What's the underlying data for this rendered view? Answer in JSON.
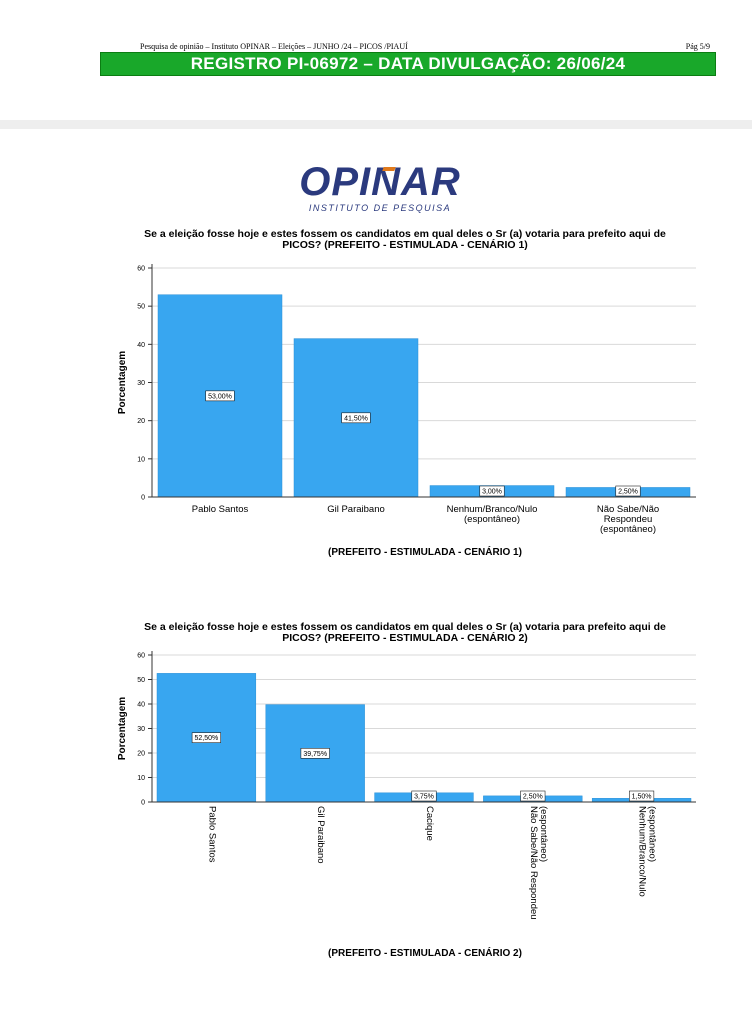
{
  "header": {
    "line": "Pesquisa de opinião – Instituto OPINAR – Eleições – JUNHO /24 – PICOS /PIAUÍ",
    "page": "Pág 5/9",
    "registro": "REGISTRO PI-06972 – DATA DIVULGAÇÃO: 26/06/24",
    "bar_color": "#19a82a"
  },
  "logo": {
    "name": "OPINAR",
    "subtitle": "INSTITUTO DE PESQUISA",
    "color": "#2b3a7e",
    "accent_color": "#e07a1c"
  },
  "chart_data": [
    {
      "type": "bar",
      "title_line1": "Se a eleição fosse hoje e estes fossem os candidatos em qual deles o Sr (a) votaria para prefeito aqui de",
      "title_line2": "PICOS? (PREFEITO - ESTIMULADA - CENÁRIO 1)",
      "xlabel": "(PREFEITO - ESTIMULADA - CENÁRIO 1)",
      "ylabel": "Porcentagem",
      "ylim": [
        0,
        60
      ],
      "yticks": [
        "0",
        "10",
        "20",
        "30",
        "40",
        "50",
        "60"
      ],
      "grid": true,
      "bar_color": "#38a6f0",
      "categories": [
        [
          "Pablo Santos"
        ],
        [
          "Gil Paraibano"
        ],
        [
          "Nenhum/Branco/Nulo",
          "(espontâneo)"
        ],
        [
          "Não Sabe/Não",
          "Respondeu",
          "(espontâneo)"
        ]
      ],
      "values": [
        53.0,
        41.5,
        3.0,
        2.5
      ],
      "data_labels": [
        "53,00%",
        "41,50%",
        "3,00%",
        "2,50%"
      ]
    },
    {
      "type": "bar",
      "title_line1": "Se a eleição fosse hoje e estes fossem os candidatos em qual deles o Sr (a) votaria para prefeito aqui de",
      "title_line2": "PICOS?  (PREFEITO - ESTIMULADA - CENÁRIO 2)",
      "xlabel": "(PREFEITO - ESTIMULADA - CENÁRIO 2)",
      "ylabel": "Porcentagem",
      "ylim": [
        0,
        60
      ],
      "yticks": [
        "0",
        "10",
        "20",
        "30",
        "40",
        "50",
        "60"
      ],
      "grid": true,
      "bar_color": "#38a6f0",
      "rotated_x_labels": true,
      "categories": [
        [
          "Pablo Santos"
        ],
        [
          "Gil Paraibano"
        ],
        [
          "Cacique"
        ],
        [
          "Não Sabe/Não Respondeu",
          "(espontâneo)"
        ],
        [
          "Nenhum/Branco/Nulo",
          "(espontâneo)"
        ]
      ],
      "values": [
        52.5,
        39.75,
        3.75,
        2.5,
        1.5
      ],
      "data_labels": [
        "52,50%",
        "39,75%",
        "3,75%",
        "2,50%",
        "1,50%"
      ]
    }
  ]
}
